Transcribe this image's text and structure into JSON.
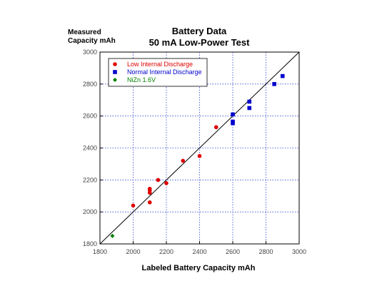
{
  "chart_data": {
    "type": "scatter",
    "title": "Battery Data",
    "subtitle": "50 mA Low-Power Test",
    "xlabel": "Labeled Battery Capacity mAh",
    "ylabel_line1": "Measured",
    "ylabel_line2": "Capacity mAh",
    "xlim": [
      1800,
      3000
    ],
    "ylim": [
      1800,
      3000
    ],
    "xticks": [
      "1800",
      "2000",
      "2200",
      "2400",
      "2600",
      "2800",
      "3000"
    ],
    "yticks": [
      "1800",
      "2000",
      "2200",
      "2400",
      "2600",
      "2800",
      "3000"
    ],
    "grid": true,
    "grid_style": "dotted",
    "reference_line": "y = x",
    "legend_position": "top-left",
    "series": [
      {
        "name": "Low Internal Discharge",
        "marker": "circle",
        "color": "#e00000",
        "points": [
          [
            2000,
            2040
          ],
          [
            2100,
            2060
          ],
          [
            2100,
            2120
          ],
          [
            2100,
            2135
          ],
          [
            2100,
            2145
          ],
          [
            2150,
            2200
          ],
          [
            2200,
            2180
          ],
          [
            2300,
            2320
          ],
          [
            2400,
            2350
          ],
          [
            2500,
            2530
          ]
        ]
      },
      {
        "name": "Normal Internal Discharge",
        "marker": "square",
        "color": "#0000cc",
        "points": [
          [
            2600,
            2610
          ],
          [
            2600,
            2565
          ],
          [
            2600,
            2555
          ],
          [
            2700,
            2690
          ],
          [
            2700,
            2650
          ],
          [
            2850,
            2800
          ],
          [
            2900,
            2850
          ]
        ]
      },
      {
        "name": "NiZn 1.6V",
        "marker": "diamond",
        "color": "#008000",
        "points": [
          [
            1875,
            1850
          ]
        ]
      }
    ]
  }
}
